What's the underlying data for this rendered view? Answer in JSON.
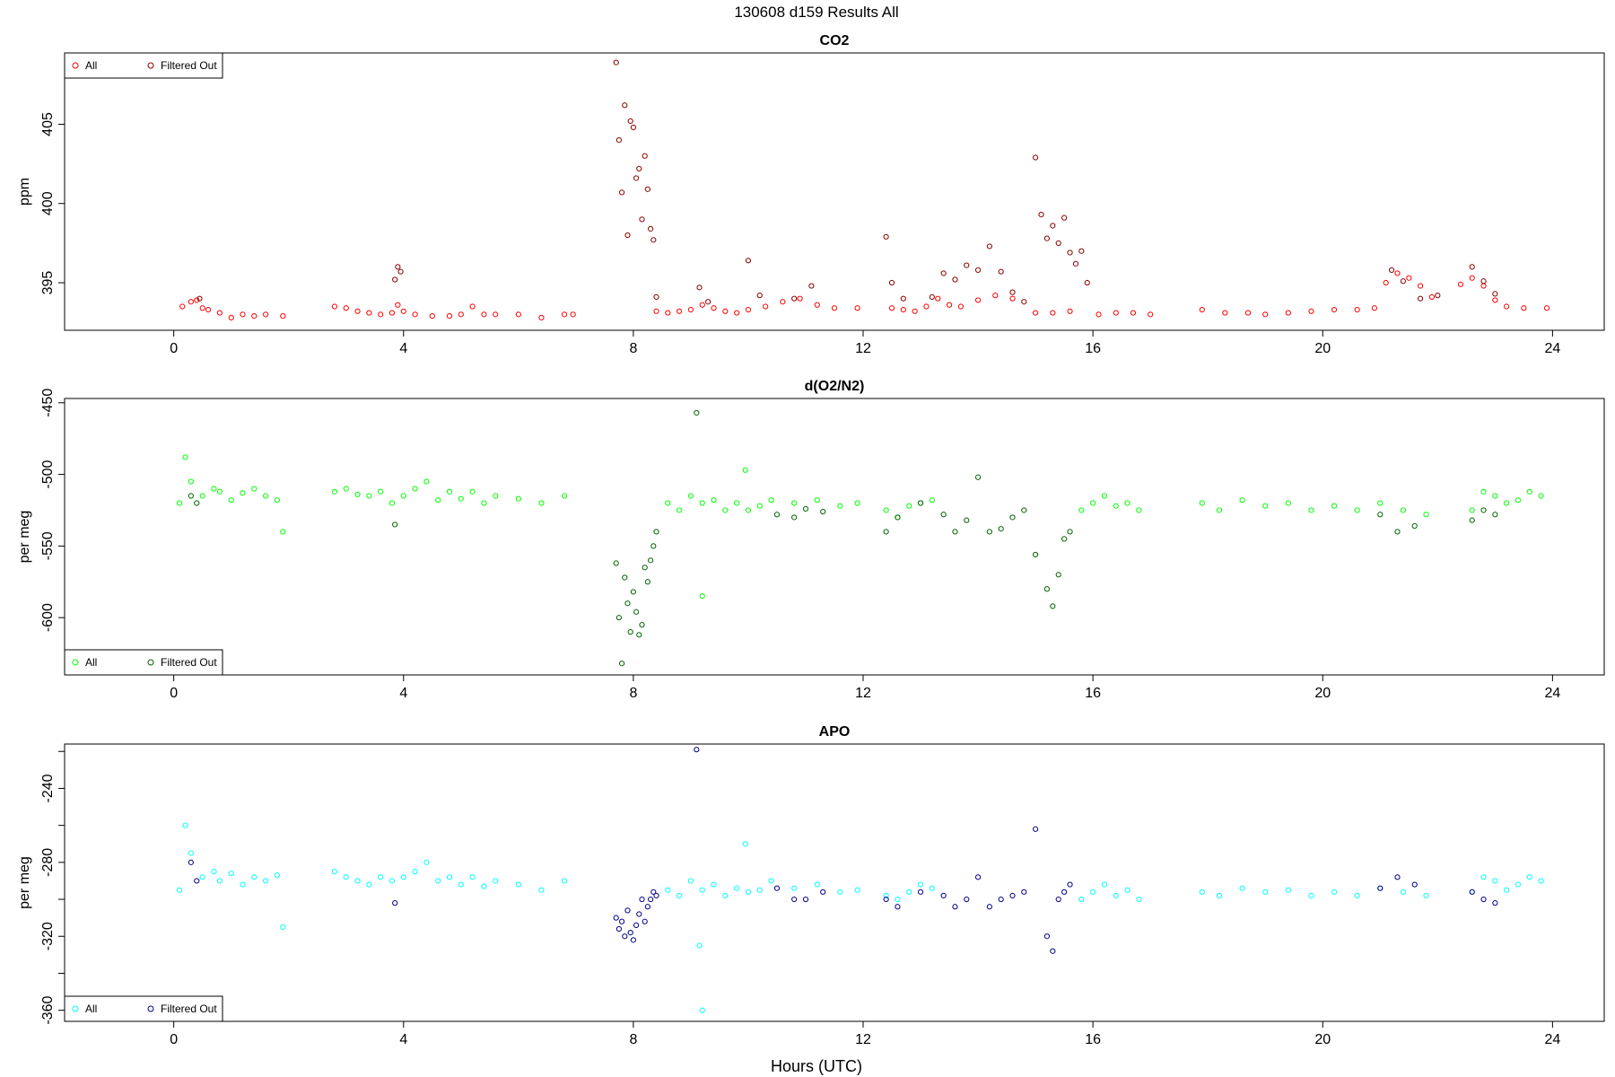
{
  "figure_title": "130608   d159   Results All",
  "xlabel": "Hours (UTC)",
  "chart_data": [
    {
      "type": "scatter",
      "title": "CO2",
      "ylabel": "ppm",
      "xlim": [
        -1.9,
        24.9
      ],
      "ylim": [
        392.0,
        409.5
      ],
      "xticks": [
        0,
        4,
        8,
        12,
        16,
        20,
        24
      ],
      "yticks": [
        395,
        400,
        405
      ],
      "ytick_labels": [
        "395",
        "400",
        "405"
      ],
      "legend": {
        "position": "top-left",
        "entries": [
          "All",
          "Filtered Out"
        ]
      },
      "series": [
        {
          "name": "All",
          "color": "#ff0000",
          "x": [
            0.15,
            0.3,
            0.4,
            0.5,
            0.6,
            0.8,
            1.0,
            1.2,
            1.4,
            1.6,
            1.9,
            2.8,
            3.0,
            3.2,
            3.4,
            3.6,
            3.8,
            3.9,
            4.0,
            4.2,
            4.5,
            4.8,
            5.0,
            5.2,
            5.4,
            5.6,
            6.0,
            6.4,
            6.8,
            6.95,
            8.4,
            8.6,
            8.8,
            9.0,
            9.2,
            9.4,
            9.6,
            9.8,
            10.0,
            10.3,
            10.6,
            10.9,
            11.2,
            11.5,
            11.9,
            12.5,
            12.7,
            12.9,
            13.1,
            13.3,
            13.5,
            13.7,
            14.0,
            14.3,
            14.6,
            15.0,
            15.3,
            15.6,
            16.1,
            16.4,
            16.7,
            17.0,
            17.9,
            18.3,
            18.7,
            19.0,
            19.4,
            19.8,
            20.2,
            20.6,
            20.9,
            21.1,
            21.3,
            21.5,
            21.7,
            21.9,
            22.4,
            22.6,
            22.8,
            23.0,
            23.2,
            23.5,
            23.9
          ],
          "y": [
            393.5,
            393.8,
            393.9,
            393.4,
            393.3,
            393.1,
            392.8,
            393.0,
            392.9,
            393.0,
            392.9,
            393.5,
            393.4,
            393.2,
            393.1,
            393.0,
            393.1,
            393.6,
            393.2,
            393.0,
            392.9,
            392.9,
            393.0,
            393.5,
            393.0,
            393.0,
            393.0,
            392.8,
            393.0,
            393.0,
            393.2,
            393.1,
            393.2,
            393.3,
            393.6,
            393.4,
            393.2,
            393.1,
            393.3,
            393.5,
            393.8,
            394.0,
            393.6,
            393.4,
            393.4,
            393.4,
            393.3,
            393.2,
            393.5,
            394.0,
            393.6,
            393.5,
            393.9,
            394.2,
            394.0,
            393.1,
            393.1,
            393.2,
            393.0,
            393.1,
            393.1,
            393.0,
            393.3,
            393.1,
            393.1,
            393.0,
            393.1,
            393.2,
            393.3,
            393.3,
            393.4,
            395.0,
            395.6,
            395.3,
            394.8,
            394.1,
            394.9,
            395.3,
            394.8,
            393.9,
            393.5,
            393.4,
            393.4
          ]
        },
        {
          "name": "Filtered Out",
          "color": "#8b0000",
          "x": [
            0.45,
            3.85,
            3.9,
            3.95,
            7.7,
            7.75,
            7.8,
            7.85,
            7.9,
            7.95,
            8.0,
            8.05,
            8.1,
            8.15,
            8.2,
            8.25,
            8.3,
            8.35,
            8.4,
            9.15,
            9.3,
            10.0,
            10.2,
            10.8,
            11.1,
            12.4,
            12.5,
            12.7,
            13.2,
            13.4,
            13.6,
            13.8,
            14.0,
            14.2,
            14.4,
            14.6,
            14.8,
            15.0,
            15.1,
            15.2,
            15.3,
            15.4,
            15.5,
            15.6,
            15.7,
            15.8,
            15.9,
            21.2,
            21.4,
            21.7,
            22.0,
            22.6,
            22.8,
            23.0
          ],
          "y": [
            394.0,
            395.2,
            396.0,
            395.7,
            408.9,
            404.0,
            400.7,
            406.2,
            398.0,
            405.2,
            404.8,
            401.6,
            402.2,
            399.0,
            403.0,
            400.9,
            398.4,
            397.7,
            394.1,
            394.7,
            393.8,
            396.4,
            394.2,
            394.0,
            394.8,
            397.9,
            395.0,
            394.0,
            394.1,
            395.6,
            395.2,
            396.1,
            395.8,
            397.3,
            395.7,
            394.4,
            393.8,
            402.9,
            399.3,
            397.8,
            398.6,
            397.5,
            399.1,
            396.9,
            396.2,
            397.0,
            395.0,
            395.8,
            395.1,
            394.0,
            394.2,
            396.0,
            395.1,
            394.3
          ]
        }
      ]
    },
    {
      "type": "scatter",
      "title": "d(O2/N2)",
      "ylabel": "per meg",
      "xlim": [
        -1.9,
        24.9
      ],
      "ylim": [
        -640,
        -447
      ],
      "xticks": [
        0,
        4,
        8,
        12,
        16,
        20,
        24
      ],
      "yticks": [
        -450,
        -500,
        -550,
        -600
      ],
      "ytick_labels": [
        "-450",
        "-500",
        "-550",
        "-600"
      ],
      "legend": {
        "position": "bottom-left",
        "entries": [
          "All",
          "Filtered Out"
        ]
      },
      "series": [
        {
          "name": "All",
          "color": "#00ff00",
          "x": [
            0.1,
            0.2,
            0.3,
            0.5,
            0.7,
            0.8,
            1.0,
            1.2,
            1.4,
            1.6,
            1.8,
            1.9,
            2.8,
            3.0,
            3.2,
            3.4,
            3.6,
            3.8,
            4.0,
            4.2,
            4.4,
            4.6,
            4.8,
            5.0,
            5.2,
            5.4,
            5.6,
            6.0,
            6.4,
            6.8,
            8.6,
            8.8,
            9.0,
            9.2,
            9.4,
            9.6,
            9.8,
            10.0,
            10.2,
            10.4,
            10.8,
            11.2,
            11.6,
            11.9,
            12.4,
            12.6,
            12.8,
            13.0,
            13.2,
            15.8,
            16.0,
            16.2,
            16.4,
            16.6,
            16.8,
            17.9,
            18.2,
            18.6,
            19.0,
            19.4,
            19.8,
            20.2,
            20.6,
            21.0,
            21.4,
            21.8,
            22.6,
            22.8,
            23.0,
            23.2,
            23.4,
            23.6,
            23.8,
            9.2,
            9.95
          ],
          "y": [
            -520,
            -488,
            -505,
            -515,
            -510,
            -512,
            -518,
            -513,
            -510,
            -515,
            -518,
            -540,
            -512,
            -510,
            -514,
            -515,
            -512,
            -520,
            -515,
            -510,
            -505,
            -518,
            -512,
            -517,
            -512,
            -520,
            -515,
            -517,
            -520,
            -515,
            -520,
            -525,
            -515,
            -520,
            -518,
            -525,
            -520,
            -525,
            -522,
            -518,
            -520,
            -518,
            -522,
            -520,
            -525,
            -530,
            -522,
            -520,
            -518,
            -525,
            -520,
            -515,
            -522,
            -520,
            -525,
            -520,
            -525,
            -518,
            -522,
            -520,
            -525,
            -522,
            -525,
            -520,
            -525,
            -528,
            -525,
            -512,
            -515,
            -520,
            -518,
            -512,
            -515,
            -585,
            -497
          ]
        },
        {
          "name": "Filtered Out",
          "color": "#006400",
          "x": [
            0.3,
            0.4,
            3.85,
            7.7,
            7.75,
            7.8,
            7.85,
            7.9,
            7.95,
            8.0,
            8.05,
            8.1,
            8.15,
            8.2,
            8.25,
            8.3,
            8.35,
            8.4,
            10.5,
            10.8,
            11.0,
            11.3,
            12.4,
            12.6,
            13.0,
            13.4,
            13.6,
            13.8,
            14.0,
            14.2,
            14.4,
            14.6,
            14.8,
            15.0,
            15.2,
            15.3,
            15.4,
            15.5,
            15.6,
            21.0,
            21.3,
            21.6,
            22.6,
            22.8,
            23.0,
            9.1
          ],
          "y": [
            -515,
            -520,
            -535,
            -562,
            -600,
            -632,
            -572,
            -590,
            -610,
            -582,
            -596,
            -612,
            -605,
            -565,
            -575,
            -560,
            -550,
            -540,
            -528,
            -530,
            -524,
            -526,
            -540,
            -530,
            -520,
            -528,
            -540,
            -532,
            -502,
            -540,
            -538,
            -530,
            -525,
            -556,
            -580,
            -592,
            -570,
            -545,
            -540,
            -528,
            -540,
            -536,
            -532,
            -525,
            -528,
            -457
          ]
        }
      ]
    },
    {
      "type": "scatter",
      "title": "APO",
      "ylabel": "per meg",
      "xlim": [
        -1.9,
        24.9
      ],
      "ylim": [
        -366,
        -216
      ],
      "xticks": [
        0,
        4,
        8,
        12,
        16,
        20,
        24
      ],
      "yticks": [
        -240,
        -280,
        -320,
        -360
      ],
      "ytick_labels": [
        "-240",
        "-280",
        "-320",
        "-360"
      ],
      "minor_yticks": [
        -220,
        -260,
        -300,
        -340
      ],
      "legend": {
        "position": "bottom-left",
        "entries": [
          "All",
          "Filtered Out"
        ]
      },
      "series": [
        {
          "name": "All",
          "color": "#00ffff",
          "x": [
            0.1,
            0.2,
            0.3,
            0.5,
            0.7,
            0.8,
            1.0,
            1.2,
            1.4,
            1.6,
            1.8,
            1.9,
            2.8,
            3.0,
            3.2,
            3.4,
            3.6,
            3.8,
            4.0,
            4.2,
            4.4,
            4.6,
            4.8,
            5.0,
            5.2,
            5.4,
            5.6,
            6.0,
            6.4,
            6.8,
            8.6,
            8.8,
            9.0,
            9.2,
            9.4,
            9.6,
            9.8,
            10.0,
            10.2,
            10.4,
            10.8,
            11.2,
            11.6,
            11.9,
            12.4,
            12.6,
            12.8,
            13.0,
            13.2,
            15.8,
            16.0,
            16.2,
            16.4,
            16.6,
            16.8,
            17.9,
            18.2,
            18.6,
            19.0,
            19.4,
            19.8,
            20.2,
            20.6,
            21.0,
            21.4,
            21.8,
            22.6,
            22.8,
            23.0,
            23.2,
            23.4,
            23.6,
            23.8,
            9.2,
            9.95,
            9.15
          ],
          "y": [
            -295,
            -260,
            -275,
            -288,
            -285,
            -290,
            -286,
            -292,
            -288,
            -290,
            -287,
            -315,
            -285,
            -288,
            -290,
            -292,
            -288,
            -290,
            -288,
            -285,
            -280,
            -290,
            -288,
            -292,
            -288,
            -293,
            -290,
            -292,
            -295,
            -290,
            -295,
            -298,
            -290,
            -295,
            -292,
            -298,
            -294,
            -296,
            -295,
            -290,
            -294,
            -292,
            -296,
            -295,
            -298,
            -300,
            -296,
            -292,
            -294,
            -300,
            -296,
            -292,
            -298,
            -295,
            -300,
            -296,
            -298,
            -294,
            -296,
            -295,
            -298,
            -296,
            -298,
            -294,
            -296,
            -298,
            -296,
            -288,
            -290,
            -295,
            -292,
            -288,
            -290,
            -360,
            -270,
            -325
          ]
        },
        {
          "name": "Filtered Out",
          "color": "#00008b",
          "x": [
            0.3,
            0.4,
            3.85,
            7.7,
            7.75,
            7.8,
            7.85,
            7.9,
            7.95,
            8.0,
            8.05,
            8.1,
            8.15,
            8.2,
            8.25,
            8.3,
            8.35,
            8.4,
            10.5,
            10.8,
            11.0,
            11.3,
            12.4,
            12.6,
            13.0,
            13.4,
            13.6,
            13.8,
            14.0,
            14.2,
            14.4,
            14.6,
            14.8,
            15.0,
            15.2,
            15.3,
            15.4,
            15.5,
            15.6,
            21.0,
            21.3,
            21.6,
            22.6,
            22.8,
            23.0,
            9.1
          ],
          "y": [
            -280,
            -290,
            -302,
            -310,
            -316,
            -312,
            -320,
            -306,
            -318,
            -322,
            -314,
            -308,
            -300,
            -312,
            -304,
            -300,
            -296,
            -298,
            -294,
            -300,
            -300,
            -296,
            -300,
            -304,
            -296,
            -298,
            -304,
            -300,
            -288,
            -304,
            -300,
            -298,
            -296,
            -262,
            -320,
            -328,
            -300,
            -296,
            -292,
            -294,
            -288,
            -292,
            -296,
            -300,
            -302,
            -219
          ]
        }
      ]
    }
  ]
}
